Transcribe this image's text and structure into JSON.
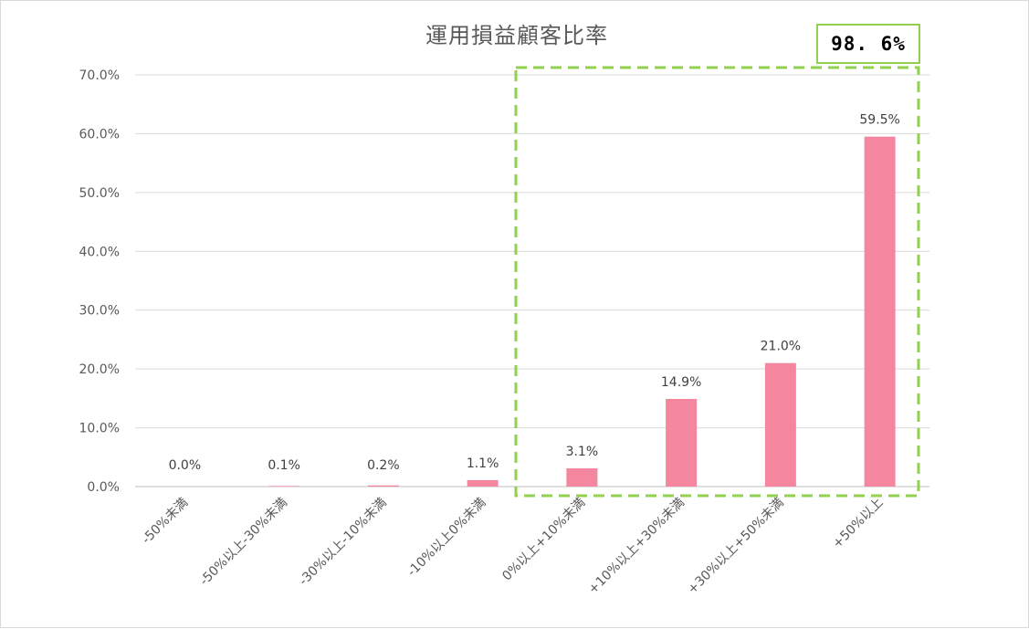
{
  "chart_data": {
    "type": "bar",
    "title": "運用損益顧客比率",
    "categories": [
      "-50%未満",
      "-50%以上-30%未満",
      "-30%以上-10%未満",
      "-10%以上0%未満",
      "0%以上+10%未満",
      "+10%以上+30%未満",
      "+30%以上+50%未満",
      "+50%以上"
    ],
    "values": [
      0.0,
      0.1,
      0.2,
      1.1,
      3.1,
      14.9,
      21.0,
      59.5
    ],
    "data_labels": [
      "0.0%",
      "0.1%",
      "0.2%",
      "1.1%",
      "3.1%",
      "14.9%",
      "21.0%",
      "59.5%"
    ],
    "y_ticks": [
      "0.0%",
      "10.0%",
      "20.0%",
      "30.0%",
      "40.0%",
      "50.0%",
      "60.0%",
      "70.0%"
    ],
    "ylim": [
      0,
      70
    ],
    "grid": true,
    "legend": "none",
    "bar_color": "#f4879f",
    "highlight": {
      "label": "98. 6%",
      "from_category": "0%以上+10%未満",
      "to_category": "+50%以上",
      "color": "#92d050"
    }
  }
}
